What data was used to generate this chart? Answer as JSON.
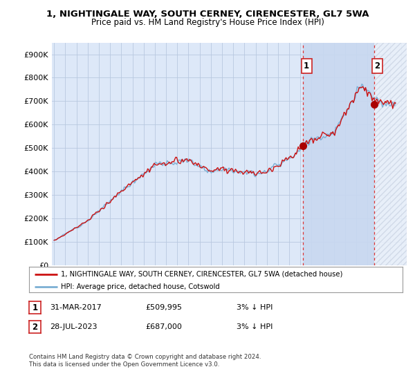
{
  "title1": "1, NIGHTINGALE WAY, SOUTH CERNEY, CIRENCESTER, GL7 5WA",
  "title2": "Price paid vs. HM Land Registry's House Price Index (HPI)",
  "legend_line1": "1, NIGHTINGALE WAY, SOUTH CERNEY, CIRENCESTER, GL7 5WA (detached house)",
  "legend_line2": "HPI: Average price, detached house, Cotswold",
  "annotation1_date": "31-MAR-2017",
  "annotation1_price": "£509,995",
  "annotation1_hpi": "3% ↓ HPI",
  "annotation2_date": "28-JUL-2023",
  "annotation2_price": "£687,000",
  "annotation2_hpi": "3% ↓ HPI",
  "footnote1": "Contains HM Land Registry data © Crown copyright and database right 2024.",
  "footnote2": "This data is licensed under the Open Government Licence v3.0.",
  "ylim": [
    0,
    950000
  ],
  "yticks": [
    0,
    100000,
    200000,
    300000,
    400000,
    500000,
    600000,
    700000,
    800000,
    900000
  ],
  "ytick_labels": [
    "£0",
    "£100K",
    "£200K",
    "£300K",
    "£400K",
    "£500K",
    "£600K",
    "£700K",
    "£800K",
    "£900K"
  ],
  "bg_color": "#dde8f8",
  "shade_color": "#c8d8f0",
  "grid_color": "#b8c8e0",
  "hpi_color": "#7bafd4",
  "price_color": "#cc1111",
  "purchase1_x": 2017.25,
  "purchase1_y": 509995,
  "purchase2_x": 2023.58,
  "purchase2_y": 687000,
  "vline_color": "#dd3333",
  "marker_color": "#aa0000",
  "xmin": 1995,
  "xmax": 2026
}
